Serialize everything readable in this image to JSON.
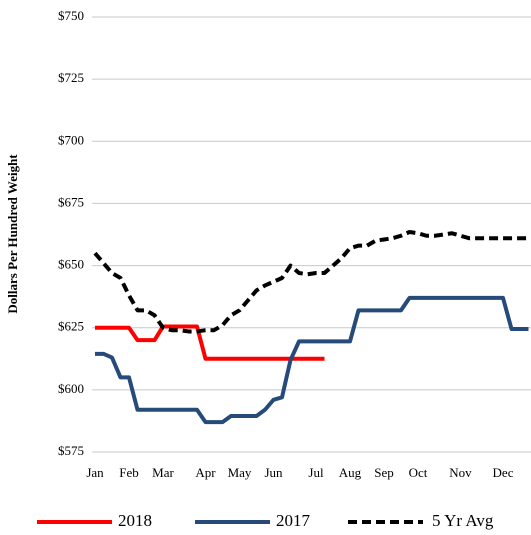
{
  "chart_data": {
    "type": "line",
    "y_axis_label": "Dollars Per Hundred Weight",
    "categories": [
      "Jan",
      null,
      null,
      null,
      "Feb",
      null,
      null,
      null,
      "Mar",
      null,
      null,
      null,
      null,
      "Apr",
      null,
      null,
      null,
      "May",
      null,
      null,
      null,
      "Jun",
      null,
      null,
      null,
      null,
      "Jul",
      null,
      null,
      null,
      "Aug",
      null,
      null,
      null,
      "Sep",
      null,
      null,
      null,
      "Oct",
      null,
      null,
      null,
      null,
      "Nov",
      null,
      null,
      null,
      null,
      "Dec",
      null,
      null,
      null
    ],
    "series": [
      {
        "name": "2018",
        "color": "#ff0000",
        "dashed": false,
        "values": [
          625,
          625,
          625,
          625,
          625,
          620,
          620,
          620,
          625.5,
          625.5,
          625.5,
          625.5,
          625.5,
          612.5,
          612.5,
          612.5,
          612.5,
          612.5,
          612.5,
          612.5,
          612.5,
          612.5,
          612.5,
          612.5,
          612.5,
          612.5,
          612.5,
          612.5,
          null,
          null,
          null,
          null,
          null,
          null,
          null,
          null,
          null,
          null,
          null,
          null,
          null,
          null,
          null,
          null,
          null,
          null,
          null,
          null,
          null,
          null,
          null,
          null
        ]
      },
      {
        "name": "2017",
        "color": "#264b7a",
        "dashed": false,
        "values": [
          614.5,
          614.5,
          613,
          605,
          605,
          592,
          592,
          592,
          592,
          592,
          592,
          592,
          592,
          587,
          587,
          587,
          589.5,
          589.5,
          589.5,
          589.5,
          592,
          596,
          597,
          612,
          619.5,
          619.5,
          619.5,
          619.5,
          619.5,
          619.5,
          619.5,
          632,
          632,
          632,
          632,
          632,
          632,
          637,
          637,
          637,
          637,
          637,
          637,
          637,
          637,
          637,
          637,
          637,
          637,
          624.5,
          624.5,
          624.5
        ]
      },
      {
        "name": "5 Yr Avg",
        "color": "#000000",
        "dashed": true,
        "values": [
          655,
          651,
          647,
          645,
          638,
          632,
          632,
          630,
          625,
          624,
          624,
          623.5,
          623.5,
          624,
          624,
          626,
          630,
          632,
          636,
          640,
          642,
          643.5,
          645,
          650,
          647,
          646.5,
          647,
          647,
          650,
          653,
          657,
          658,
          658,
          660,
          660.5,
          661,
          662,
          663.5,
          663,
          662,
          662,
          662.5,
          663,
          662,
          661,
          661,
          661,
          661,
          661,
          661,
          661,
          661
        ]
      }
    ],
    "ylim": [
      575,
      750
    ],
    "yticks": [
      {
        "value": 575,
        "label": "$575"
      },
      {
        "value": 600,
        "label": "$600"
      },
      {
        "value": 625,
        "label": "$625"
      },
      {
        "value": 650,
        "label": "$650"
      },
      {
        "value": 675,
        "label": "$675"
      },
      {
        "value": 700,
        "label": "$700"
      },
      {
        "value": 725,
        "label": "$725"
      },
      {
        "value": 750,
        "label": "$750"
      }
    ],
    "grid": true,
    "legend": "bottom"
  }
}
